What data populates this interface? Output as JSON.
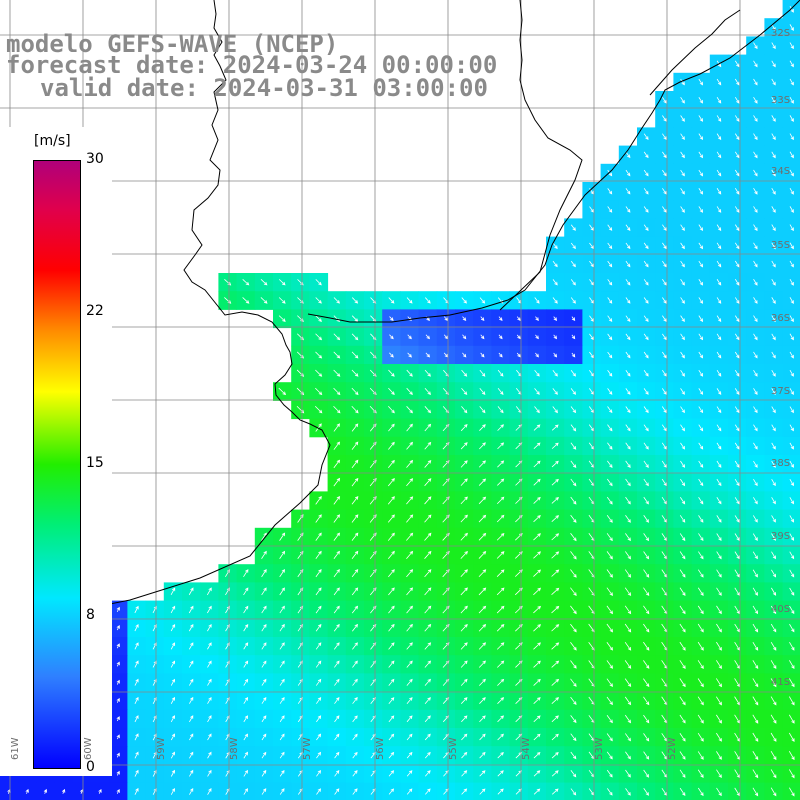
{
  "title": {
    "line1": "modelo GEFS-WAVE (NCEP)",
    "line2": "forecast date: 2024-03-24 00:00:00",
    "line3": "valid date: 2024-03-31 03:00:00"
  },
  "colorbar": {
    "unit": "[m/s]",
    "ticks": [
      "30",
      "22",
      "15",
      "8",
      "0"
    ],
    "colors": [
      "#0000ff",
      "#2f7fff",
      "#00e8ff",
      "#00ee77",
      "#22ee00",
      "#ffff00",
      "#ff8c00",
      "#ff0000",
      "#e0004c",
      "#b0007a"
    ]
  },
  "grid": {
    "lat_labels": [
      "32S",
      "33S",
      "34S",
      "35S",
      "36S",
      "37S",
      "38S",
      "39S",
      "40S",
      "41S"
    ],
    "lon_labels": [
      "61W",
      "60W",
      "59W",
      "58W",
      "57W",
      "56W",
      "55W",
      "54W",
      "53W",
      "52W"
    ]
  },
  "colors": {
    "land": "#ffffff",
    "coast": "#000000",
    "grid_line": "#888888",
    "arrow": "#ffffff"
  },
  "wind": {
    "field": "wind speed and direction",
    "units": "m/s",
    "range": [
      0,
      30
    ]
  }
}
